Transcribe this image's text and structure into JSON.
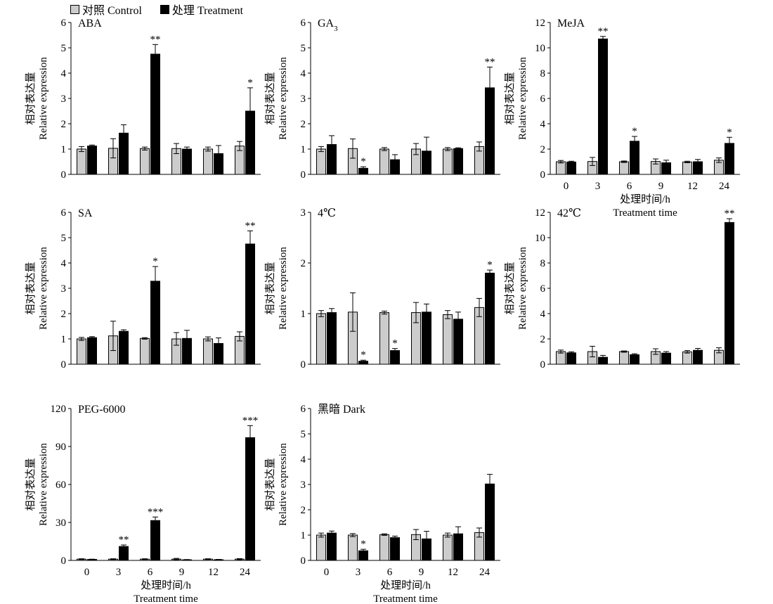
{
  "legend": {
    "control": "对照 Control",
    "treatment": "处理 Treatment",
    "control_color": "#cccccc",
    "treatment_color": "#000000"
  },
  "axis_text": {
    "ylabel_cn": "相对表达量",
    "ylabel_en": "Relative expression",
    "xlabel_cn": "处理时间/h",
    "xlabel_en": "Treatment time"
  },
  "chart_data": [
    {
      "type": "bar",
      "title": "ABA",
      "categories": [
        "0",
        "3",
        "6",
        "9",
        "12",
        "24"
      ],
      "ylim": [
        0,
        6
      ],
      "yticks": [
        0,
        1,
        2,
        3,
        4,
        5,
        6
      ],
      "series": [
        {
          "name": "对照 Control",
          "values": [
            1.0,
            1.03,
            1.02,
            1.02,
            1.0,
            1.12
          ],
          "errors": [
            0.1,
            0.38,
            0.06,
            0.2,
            0.08,
            0.18
          ]
        },
        {
          "name": "处理 Treatment",
          "values": [
            1.12,
            1.63,
            4.75,
            1.0,
            0.82,
            2.5
          ],
          "errors": [
            0.04,
            0.33,
            0.38,
            0.08,
            0.32,
            0.92
          ]
        }
      ],
      "significance": [
        "",
        "",
        "**",
        "",
        "",
        "*"
      ]
    },
    {
      "type": "bar",
      "title": "GA3",
      "categories": [
        "0",
        "3",
        "6",
        "9",
        "12",
        "24"
      ],
      "ylim": [
        0,
        6
      ],
      "yticks": [
        0,
        1,
        2,
        3,
        4,
        5,
        6
      ],
      "series": [
        {
          "name": "对照 Control",
          "values": [
            1.0,
            1.02,
            1.0,
            1.0,
            1.0,
            1.1
          ],
          "errors": [
            0.1,
            0.38,
            0.06,
            0.22,
            0.06,
            0.18
          ]
        },
        {
          "name": "处理 Treatment",
          "values": [
            1.18,
            0.24,
            0.58,
            0.92,
            1.02,
            3.42
          ],
          "errors": [
            0.35,
            0.06,
            0.2,
            0.55,
            0.03,
            0.82
          ]
        }
      ],
      "significance": [
        "",
        "*",
        "",
        "",
        "",
        "**"
      ]
    },
    {
      "type": "bar",
      "title": "MeJA",
      "categories": [
        "0",
        "3",
        "6",
        "9",
        "12",
        "24"
      ],
      "ylim": [
        0,
        12
      ],
      "yticks": [
        0,
        2,
        4,
        6,
        8,
        10,
        12
      ],
      "series": [
        {
          "name": "对照 Control",
          "values": [
            1.0,
            1.02,
            1.0,
            1.02,
            0.98,
            1.12
          ],
          "errors": [
            0.1,
            0.32,
            0.06,
            0.2,
            0.06,
            0.18
          ]
        },
        {
          "name": "处理 Treatment",
          "values": [
            0.98,
            10.7,
            2.62,
            0.92,
            1.0,
            2.45
          ],
          "errors": [
            0.06,
            0.2,
            0.38,
            0.2,
            0.18,
            0.48
          ]
        }
      ],
      "significance": [
        "",
        "**",
        "*",
        "",
        "",
        "*"
      ]
    },
    {
      "type": "bar",
      "title": "SA",
      "categories": [
        "0",
        "3",
        "6",
        "9",
        "12",
        "24"
      ],
      "ylim": [
        0,
        6
      ],
      "yticks": [
        0,
        1,
        2,
        3,
        4,
        5,
        6
      ],
      "series": [
        {
          "name": "对照 Control",
          "values": [
            1.0,
            1.12,
            1.02,
            1.0,
            1.0,
            1.1
          ],
          "errors": [
            0.06,
            0.58,
            0.03,
            0.25,
            0.08,
            0.18
          ]
        },
        {
          "name": "处理 Treatment",
          "values": [
            1.05,
            1.3,
            3.28,
            1.02,
            0.82,
            4.75
          ],
          "errors": [
            0.04,
            0.06,
            0.58,
            0.32,
            0.22,
            0.52
          ]
        }
      ],
      "significance": [
        "",
        "",
        "*",
        "",
        "",
        "**"
      ]
    },
    {
      "type": "bar",
      "title": "4℃",
      "categories": [
        "0",
        "3",
        "6",
        "9",
        "12",
        "24"
      ],
      "ylim": [
        0,
        3
      ],
      "yticks": [
        0,
        1,
        2,
        3
      ],
      "series": [
        {
          "name": "对照 Control",
          "values": [
            1.0,
            1.03,
            1.02,
            1.02,
            0.98,
            1.12
          ],
          "errors": [
            0.06,
            0.38,
            0.03,
            0.2,
            0.08,
            0.18
          ]
        },
        {
          "name": "处理 Treatment",
          "values": [
            1.02,
            0.06,
            0.27,
            1.03,
            0.89,
            1.8
          ],
          "errors": [
            0.08,
            0.02,
            0.04,
            0.16,
            0.14,
            0.06
          ]
        }
      ],
      "significance": [
        "",
        "*",
        "*",
        "",
        "",
        "*"
      ]
    },
    {
      "type": "bar",
      "title": "42℃",
      "categories": [
        "0",
        "3",
        "6",
        "9",
        "12",
        "24"
      ],
      "ylim": [
        0,
        12
      ],
      "yticks": [
        0,
        2,
        4,
        6,
        8,
        10,
        12
      ],
      "series": [
        {
          "name": "对照 Control",
          "values": [
            1.0,
            1.0,
            1.0,
            1.0,
            0.98,
            1.1
          ],
          "errors": [
            0.12,
            0.42,
            0.05,
            0.22,
            0.1,
            0.2
          ]
        },
        {
          "name": "处理 Treatment",
          "values": [
            0.9,
            0.55,
            0.75,
            0.88,
            1.1,
            11.2
          ],
          "errors": [
            0.08,
            0.15,
            0.08,
            0.12,
            0.15,
            0.3
          ]
        }
      ],
      "significance": [
        "",
        "",
        "",
        "",
        "",
        "**"
      ]
    },
    {
      "type": "bar",
      "title": "PEG-6000",
      "categories": [
        "0",
        "3",
        "6",
        "9",
        "12",
        "24"
      ],
      "ylim": [
        0,
        120
      ],
      "yticks": [
        0,
        30,
        60,
        90,
        120
      ],
      "series": [
        {
          "name": "对照 Control",
          "values": [
            1.0,
            1.0,
            1.0,
            1.0,
            1.0,
            1.0
          ],
          "errors": [
            0.3,
            0.3,
            0.3,
            0.6,
            0.3,
            0.4
          ]
        },
        {
          "name": "处理 Treatment",
          "values": [
            0.8,
            11.0,
            31.5,
            0.5,
            0.6,
            97.0
          ],
          "errors": [
            0.2,
            1.2,
            2.8,
            0.2,
            0.2,
            9.5
          ]
        }
      ],
      "significance": [
        "",
        "**",
        "***",
        "",
        "",
        "***"
      ]
    },
    {
      "type": "bar",
      "title": "黑暗 Dark",
      "categories": [
        "0",
        "3",
        "6",
        "9",
        "12",
        "24"
      ],
      "ylim": [
        0,
        6
      ],
      "yticks": [
        0,
        1,
        2,
        3,
        4,
        5,
        6
      ],
      "series": [
        {
          "name": "对照 Control",
          "values": [
            1.0,
            1.0,
            1.02,
            1.02,
            1.0,
            1.1
          ],
          "errors": [
            0.08,
            0.06,
            0.03,
            0.2,
            0.08,
            0.18
          ]
        },
        {
          "name": "处理 Treatment",
          "values": [
            1.08,
            0.38,
            0.9,
            0.85,
            1.05,
            3.02
          ],
          "errors": [
            0.08,
            0.06,
            0.06,
            0.3,
            0.28,
            0.38
          ]
        }
      ],
      "significance": [
        "",
        "*",
        "",
        "",
        "",
        ""
      ]
    }
  ]
}
